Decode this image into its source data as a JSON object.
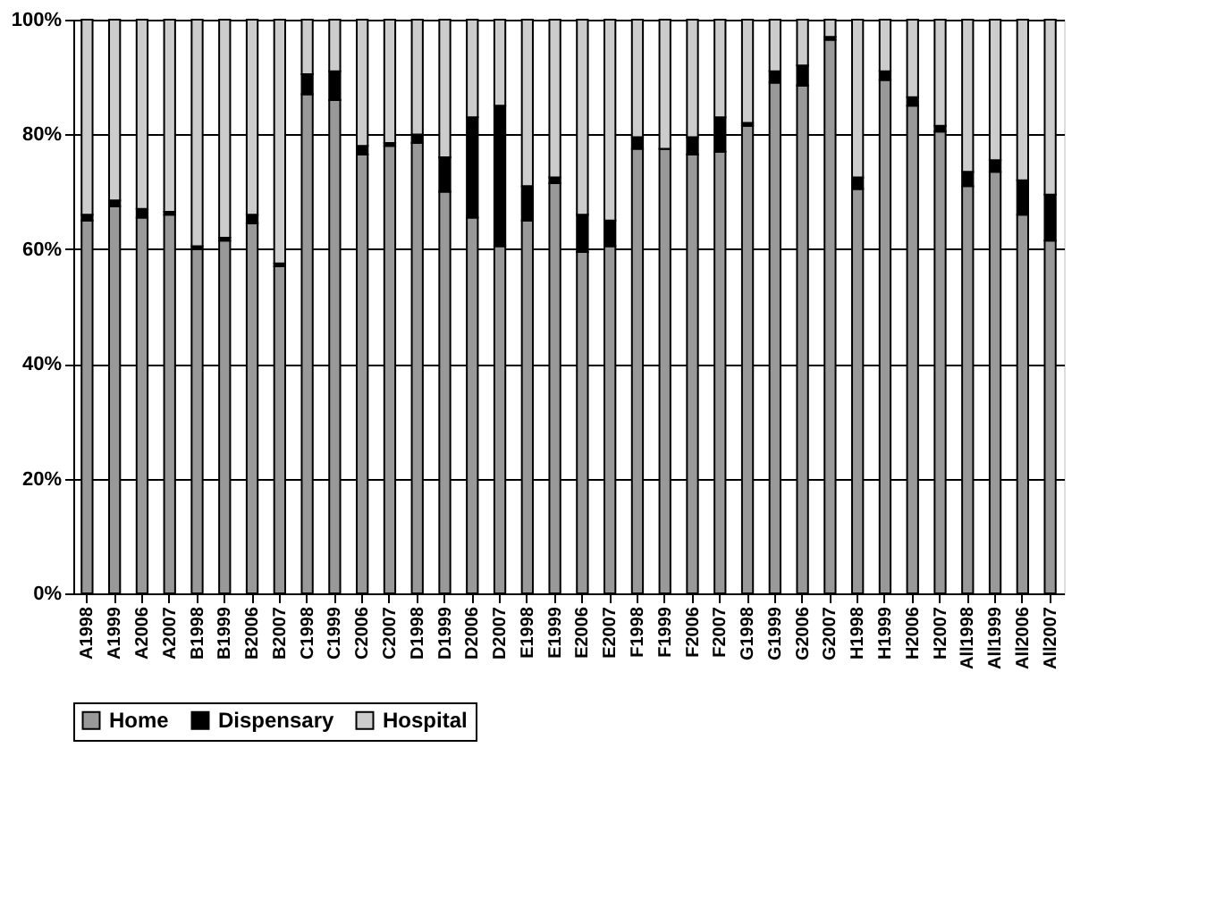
{
  "chart_data": {
    "type": "bar",
    "stacked": true,
    "categories": [
      "A1998",
      "A1999",
      "A2006",
      "A2007",
      "B1998",
      "B1999",
      "B2006",
      "B2007",
      "C1998",
      "C1999",
      "C2006",
      "C2007",
      "D1998",
      "D1999",
      "D2006",
      "D2007",
      "E1998",
      "E1999",
      "E2006",
      "E2007",
      "F1998",
      "F1999",
      "F2006",
      "F2007",
      "G1998",
      "G1999",
      "G2006",
      "G2007",
      "H1998",
      "H1999",
      "H2006",
      "H2007",
      "All1998",
      "All1999",
      "All2006",
      "All2007"
    ],
    "series": [
      {
        "name": "Home",
        "color": "#999999",
        "values": [
          65,
          67.5,
          65.5,
          66,
          60,
          61.5,
          64.5,
          57,
          87,
          86,
          76.5,
          78,
          78.5,
          70,
          65.5,
          60.5,
          65,
          71.5,
          59.5,
          60.5,
          77.5,
          77.5,
          76.5,
          77,
          81.5,
          89,
          88.5,
          96.5,
          70.5,
          89.5,
          85,
          80.5,
          71,
          73.5,
          66,
          61.5
        ]
      },
      {
        "name": "Dispensary",
        "color": "#000000",
        "values": [
          1,
          1,
          1.5,
          0.5,
          0.5,
          0.5,
          1.5,
          0.5,
          3.5,
          5,
          1.5,
          0.5,
          1.5,
          6,
          17.5,
          24.5,
          6,
          1,
          6.5,
          4.5,
          2,
          0,
          3,
          6,
          0.5,
          2,
          3.5,
          0.5,
          2,
          1.5,
          1.5,
          1,
          2.5,
          2,
          6,
          8
        ]
      },
      {
        "name": "Hospital",
        "color": "#cccccc",
        "values": [
          34,
          31.5,
          33,
          33.5,
          39.5,
          38,
          34,
          42.5,
          9.5,
          9,
          22,
          21.5,
          20,
          24,
          17,
          15,
          29,
          27.5,
          34,
          35,
          20.5,
          22.5,
          20.5,
          17,
          18,
          9,
          8,
          3,
          27.5,
          9,
          13.5,
          18.5,
          26.5,
          24.5,
          28,
          30.5
        ]
      }
    ],
    "ylim": [
      0,
      100
    ],
    "yticks": [
      {
        "value": 0,
        "label": "0%"
      },
      {
        "value": 20,
        "label": "20%"
      },
      {
        "value": 40,
        "label": "40%"
      },
      {
        "value": 60,
        "label": "60%"
      },
      {
        "value": 80,
        "label": "80%"
      },
      {
        "value": 100,
        "label": "100%"
      }
    ],
    "grid": "y",
    "legend": "bottom"
  }
}
